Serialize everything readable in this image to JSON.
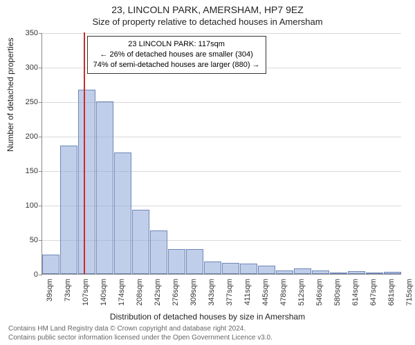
{
  "title_main": "23, LINCOLN PARK, AMERSHAM, HP7 9EZ",
  "title_sub": "Size of property relative to detached houses in Amersham",
  "ylabel": "Number of detached properties",
  "xlabel": "Distribution of detached houses by size in Amersham",
  "footer_line1": "Contains HM Land Registry data © Crown copyright and database right 2024.",
  "footer_line2": "Contains public sector information licensed under the Open Government Licence v3.0.",
  "chart": {
    "type": "histogram",
    "ylim": [
      0,
      350
    ],
    "ytick_step": 50,
    "background_color": "#ffffff",
    "grid_color": "#d9d9d9",
    "axis_color": "#888888",
    "bar_fill": "rgba(140,165,215,0.55)",
    "bar_border": "#6e86b7",
    "marker_color": "#cc2a2a",
    "marker_at_sqm": 117,
    "xtick_labels": [
      "39sqm",
      "73sqm",
      "107sqm",
      "140sqm",
      "174sqm",
      "208sqm",
      "242sqm",
      "276sqm",
      "309sqm",
      "343sqm",
      "377sqm",
      "411sqm",
      "445sqm",
      "478sqm",
      "512sqm",
      "546sqm",
      "580sqm",
      "614sqm",
      "647sqm",
      "681sqm",
      "715sqm"
    ],
    "bin_start_sqm": 39,
    "bin_width_sqm": 34,
    "counts": [
      28,
      186,
      267,
      250,
      176,
      93,
      63,
      36,
      36,
      18,
      16,
      15,
      12,
      5,
      8,
      5,
      1,
      4,
      0,
      3
    ]
  },
  "infobox": {
    "line1": "23 LINCOLN PARK: 117sqm",
    "line2": "← 26% of detached houses are smaller (304)",
    "line3": "74% of semi-detached houses are larger (880) →",
    "fontsize": 11,
    "border": "#333333",
    "bg": "#ffffff"
  }
}
